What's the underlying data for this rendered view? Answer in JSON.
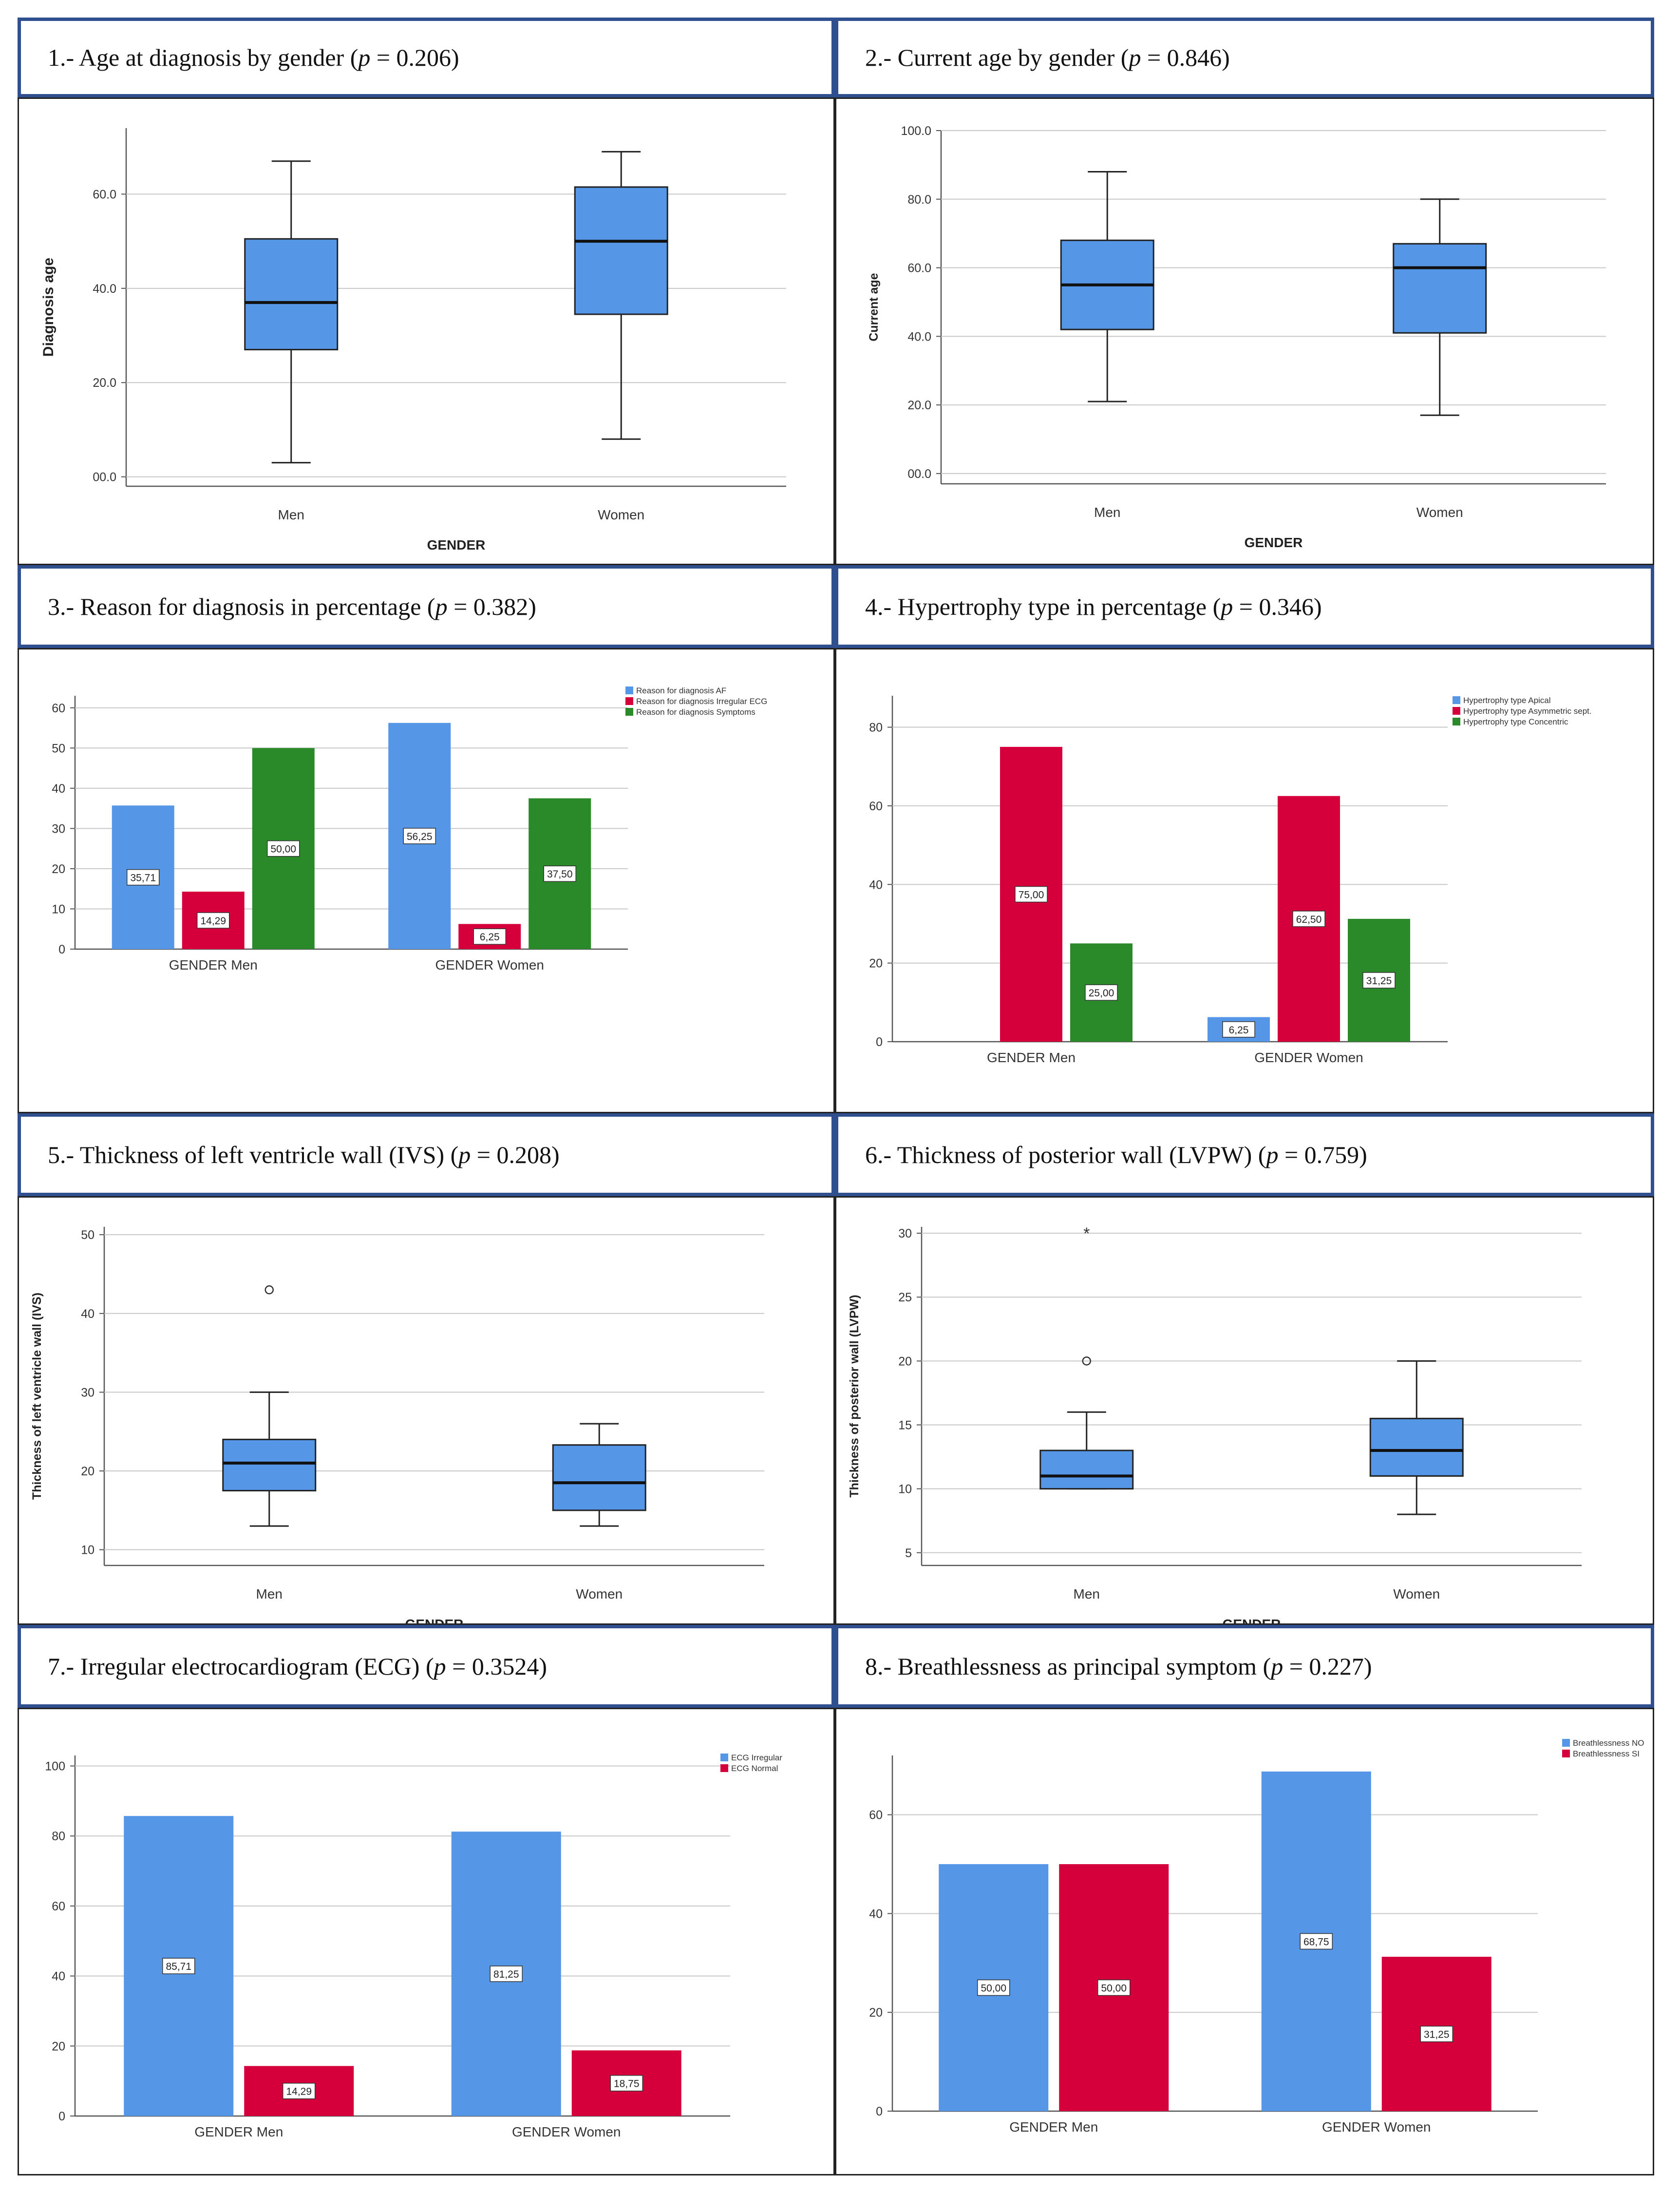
{
  "chart_data": [
    {
      "id": "c1",
      "type": "boxplot",
      "title_text": "1.- Age at diagnosis by gender (",
      "p_label": "p",
      "p_value": " = 0.206)",
      "xlabel": "GENDER",
      "ylabel": "Diagnosis age",
      "categories": [
        "Men",
        "Women"
      ],
      "yticks": [
        0,
        20,
        40,
        60
      ],
      "tick_labels": [
        "00.0",
        "20.0",
        "40.0",
        "60.0"
      ],
      "ylim": [
        -2,
        74
      ],
      "boxes": [
        {
          "min": 3,
          "q1": 27,
          "median": 37,
          "q3": 50.5,
          "max": 67,
          "outliers": [],
          "extremes": []
        },
        {
          "min": 8,
          "q1": 34.5,
          "median": 50,
          "q3": 61.5,
          "max": 69,
          "outliers": [],
          "extremes": []
        }
      ]
    },
    {
      "id": "c2",
      "type": "boxplot",
      "title_text": "2.- Current age by gender (",
      "p_label": "p",
      "p_value": " = 0.846)",
      "xlabel": "GENDER",
      "ylabel": "Current age",
      "categories": [
        "Men",
        "Women"
      ],
      "yticks": [
        0,
        20,
        40,
        60,
        80,
        100
      ],
      "tick_labels": [
        "00.0",
        "20.0",
        "40.0",
        "60.0",
        "80.0",
        "100.0"
      ],
      "ylim": [
        -3,
        100
      ],
      "boxes": [
        {
          "min": 21,
          "q1": 42,
          "median": 55,
          "q3": 68,
          "max": 88,
          "outliers": [],
          "extremes": []
        },
        {
          "min": 17,
          "q1": 41,
          "median": 60,
          "q3": 67,
          "max": 80,
          "outliers": [],
          "extremes": []
        }
      ]
    },
    {
      "id": "c3",
      "type": "bar",
      "title_text": "3.- Reason for diagnosis in percentage (",
      "p_label": "p",
      "p_value": " = 0.382)",
      "categories": [
        "GENDER Men",
        "GENDER Women"
      ],
      "series": [
        {
          "name": "Reason for diagnosis AF",
          "color": "#5596e6",
          "values": [
            35.71,
            56.25
          ],
          "labels": [
            "35,71",
            "56,25"
          ]
        },
        {
          "name": "Reason for diagnosis Irregular ECG",
          "color": "#d5003b",
          "values": [
            14.29,
            6.25
          ],
          "labels": [
            "14,29",
            "6,25"
          ]
        },
        {
          "name": "Reason for diagnosis Symptoms",
          "color": "#2a8a2a",
          "values": [
            50.0,
            37.5
          ],
          "labels": [
            "50,00",
            "37,50"
          ]
        }
      ],
      "yticks": [
        0,
        10,
        20,
        30,
        40,
        50,
        60
      ],
      "tick_labels": [
        "0",
        "10",
        "20",
        "30",
        "40",
        "50",
        "60"
      ],
      "ylim": [
        0,
        63
      ]
    },
    {
      "id": "c4",
      "type": "bar",
      "title_text": "4.- Hypertrophy type in percentage (",
      "p_label": "p",
      "p_value": " = 0.346)",
      "categories": [
        "GENDER Men",
        "GENDER Women"
      ],
      "series": [
        {
          "name": "Hypertrophy type Apical",
          "color": "#5596e6",
          "values": [
            0,
            6.25
          ],
          "labels": [
            "",
            "6,25"
          ]
        },
        {
          "name": "Hypertrophy type Asymmetric sept.",
          "color": "#d5003b",
          "values": [
            75.0,
            62.5
          ],
          "labels": [
            "75,00",
            "62,50"
          ]
        },
        {
          "name": "Hypertrophy type Concentric",
          "color": "#2a8a2a",
          "values": [
            25.0,
            31.25
          ],
          "labels": [
            "25,00",
            "31,25"
          ]
        }
      ],
      "yticks": [
        0,
        20,
        40,
        60,
        80
      ],
      "tick_labels": [
        "0",
        "20",
        "40",
        "60",
        "80"
      ],
      "ylim": [
        0,
        88
      ]
    },
    {
      "id": "c5",
      "type": "boxplot",
      "title_text": "5.- Thickness of left ventricle wall (IVS) (",
      "p_label": "p",
      "p_value": " = 0.208)",
      "xlabel": "GENDER",
      "ylabel": "Thickness of left ventricle wall (IVS)",
      "categories": [
        "Men",
        "Women"
      ],
      "yticks": [
        10,
        20,
        30,
        40,
        50
      ],
      "tick_labels": [
        "10",
        "20",
        "30",
        "40",
        "50"
      ],
      "ylim": [
        8,
        51
      ],
      "boxes": [
        {
          "min": 13,
          "q1": 17.5,
          "median": 21,
          "q3": 24,
          "max": 30,
          "outliers": [
            43
          ],
          "extremes": []
        },
        {
          "min": 13,
          "q1": 15,
          "median": 18.5,
          "q3": 23.3,
          "max": 26,
          "outliers": [],
          "extremes": []
        }
      ]
    },
    {
      "id": "c6",
      "type": "boxplot",
      "title_text": "6.- Thickness of posterior wall (LVPW) (",
      "p_label": "p",
      "p_value": " = 0.759)",
      "xlabel": "GENDER",
      "ylabel": "Thickness of posterior wall (LVPW)",
      "categories": [
        "Men",
        "Women"
      ],
      "yticks": [
        5,
        10,
        15,
        20,
        25,
        30
      ],
      "tick_labels": [
        "5",
        "10",
        "15",
        "20",
        "25",
        "30"
      ],
      "ylim": [
        4,
        30.5
      ],
      "boxes": [
        {
          "min": 10,
          "q1": 10,
          "median": 11,
          "q3": 13,
          "max": 16,
          "outliers": [
            20
          ],
          "extremes": [
            30
          ]
        },
        {
          "min": 8,
          "q1": 11,
          "median": 13,
          "q3": 15.5,
          "max": 20,
          "outliers": [],
          "extremes": []
        }
      ]
    },
    {
      "id": "c7",
      "type": "bar",
      "title_text": "7.- Irregular electrocardiogram (ECG) (",
      "p_label": "p",
      "p_value": " = 0.3524)",
      "categories": [
        "GENDER Men",
        "GENDER Women"
      ],
      "series": [
        {
          "name": "ECG Irregular",
          "color": "#5596e6",
          "values": [
            85.71,
            81.25
          ],
          "labels": [
            "85,71",
            "81,25"
          ]
        },
        {
          "name": "ECG Normal",
          "color": "#d5003b",
          "values": [
            14.29,
            18.75
          ],
          "labels": [
            "14,29",
            "18,75"
          ]
        }
      ],
      "yticks": [
        0,
        20,
        40,
        60,
        80,
        100
      ],
      "tick_labels": [
        "0",
        "20",
        "40",
        "60",
        "80",
        "100"
      ],
      "ylim": [
        0,
        103
      ]
    },
    {
      "id": "c8",
      "type": "bar",
      "title_text": "8.- Breathlessness as principal symptom (",
      "p_label": "p",
      "p_value": " = 0.227)",
      "categories": [
        "GENDER Men",
        "GENDER Women"
      ],
      "series": [
        {
          "name": "Breathlessness NO",
          "color": "#5596e6",
          "values": [
            50.0,
            68.75
          ],
          "labels": [
            "50,00",
            "68,75"
          ]
        },
        {
          "name": "Breathlessness SI",
          "color": "#d5003b",
          "values": [
            50.0,
            31.25
          ],
          "labels": [
            "50,00",
            "31,25"
          ]
        }
      ],
      "yticks": [
        0,
        20,
        40,
        60
      ],
      "tick_labels": [
        "0",
        "20",
        "40",
        "60"
      ],
      "ylim": [
        0,
        72
      ]
    }
  ]
}
